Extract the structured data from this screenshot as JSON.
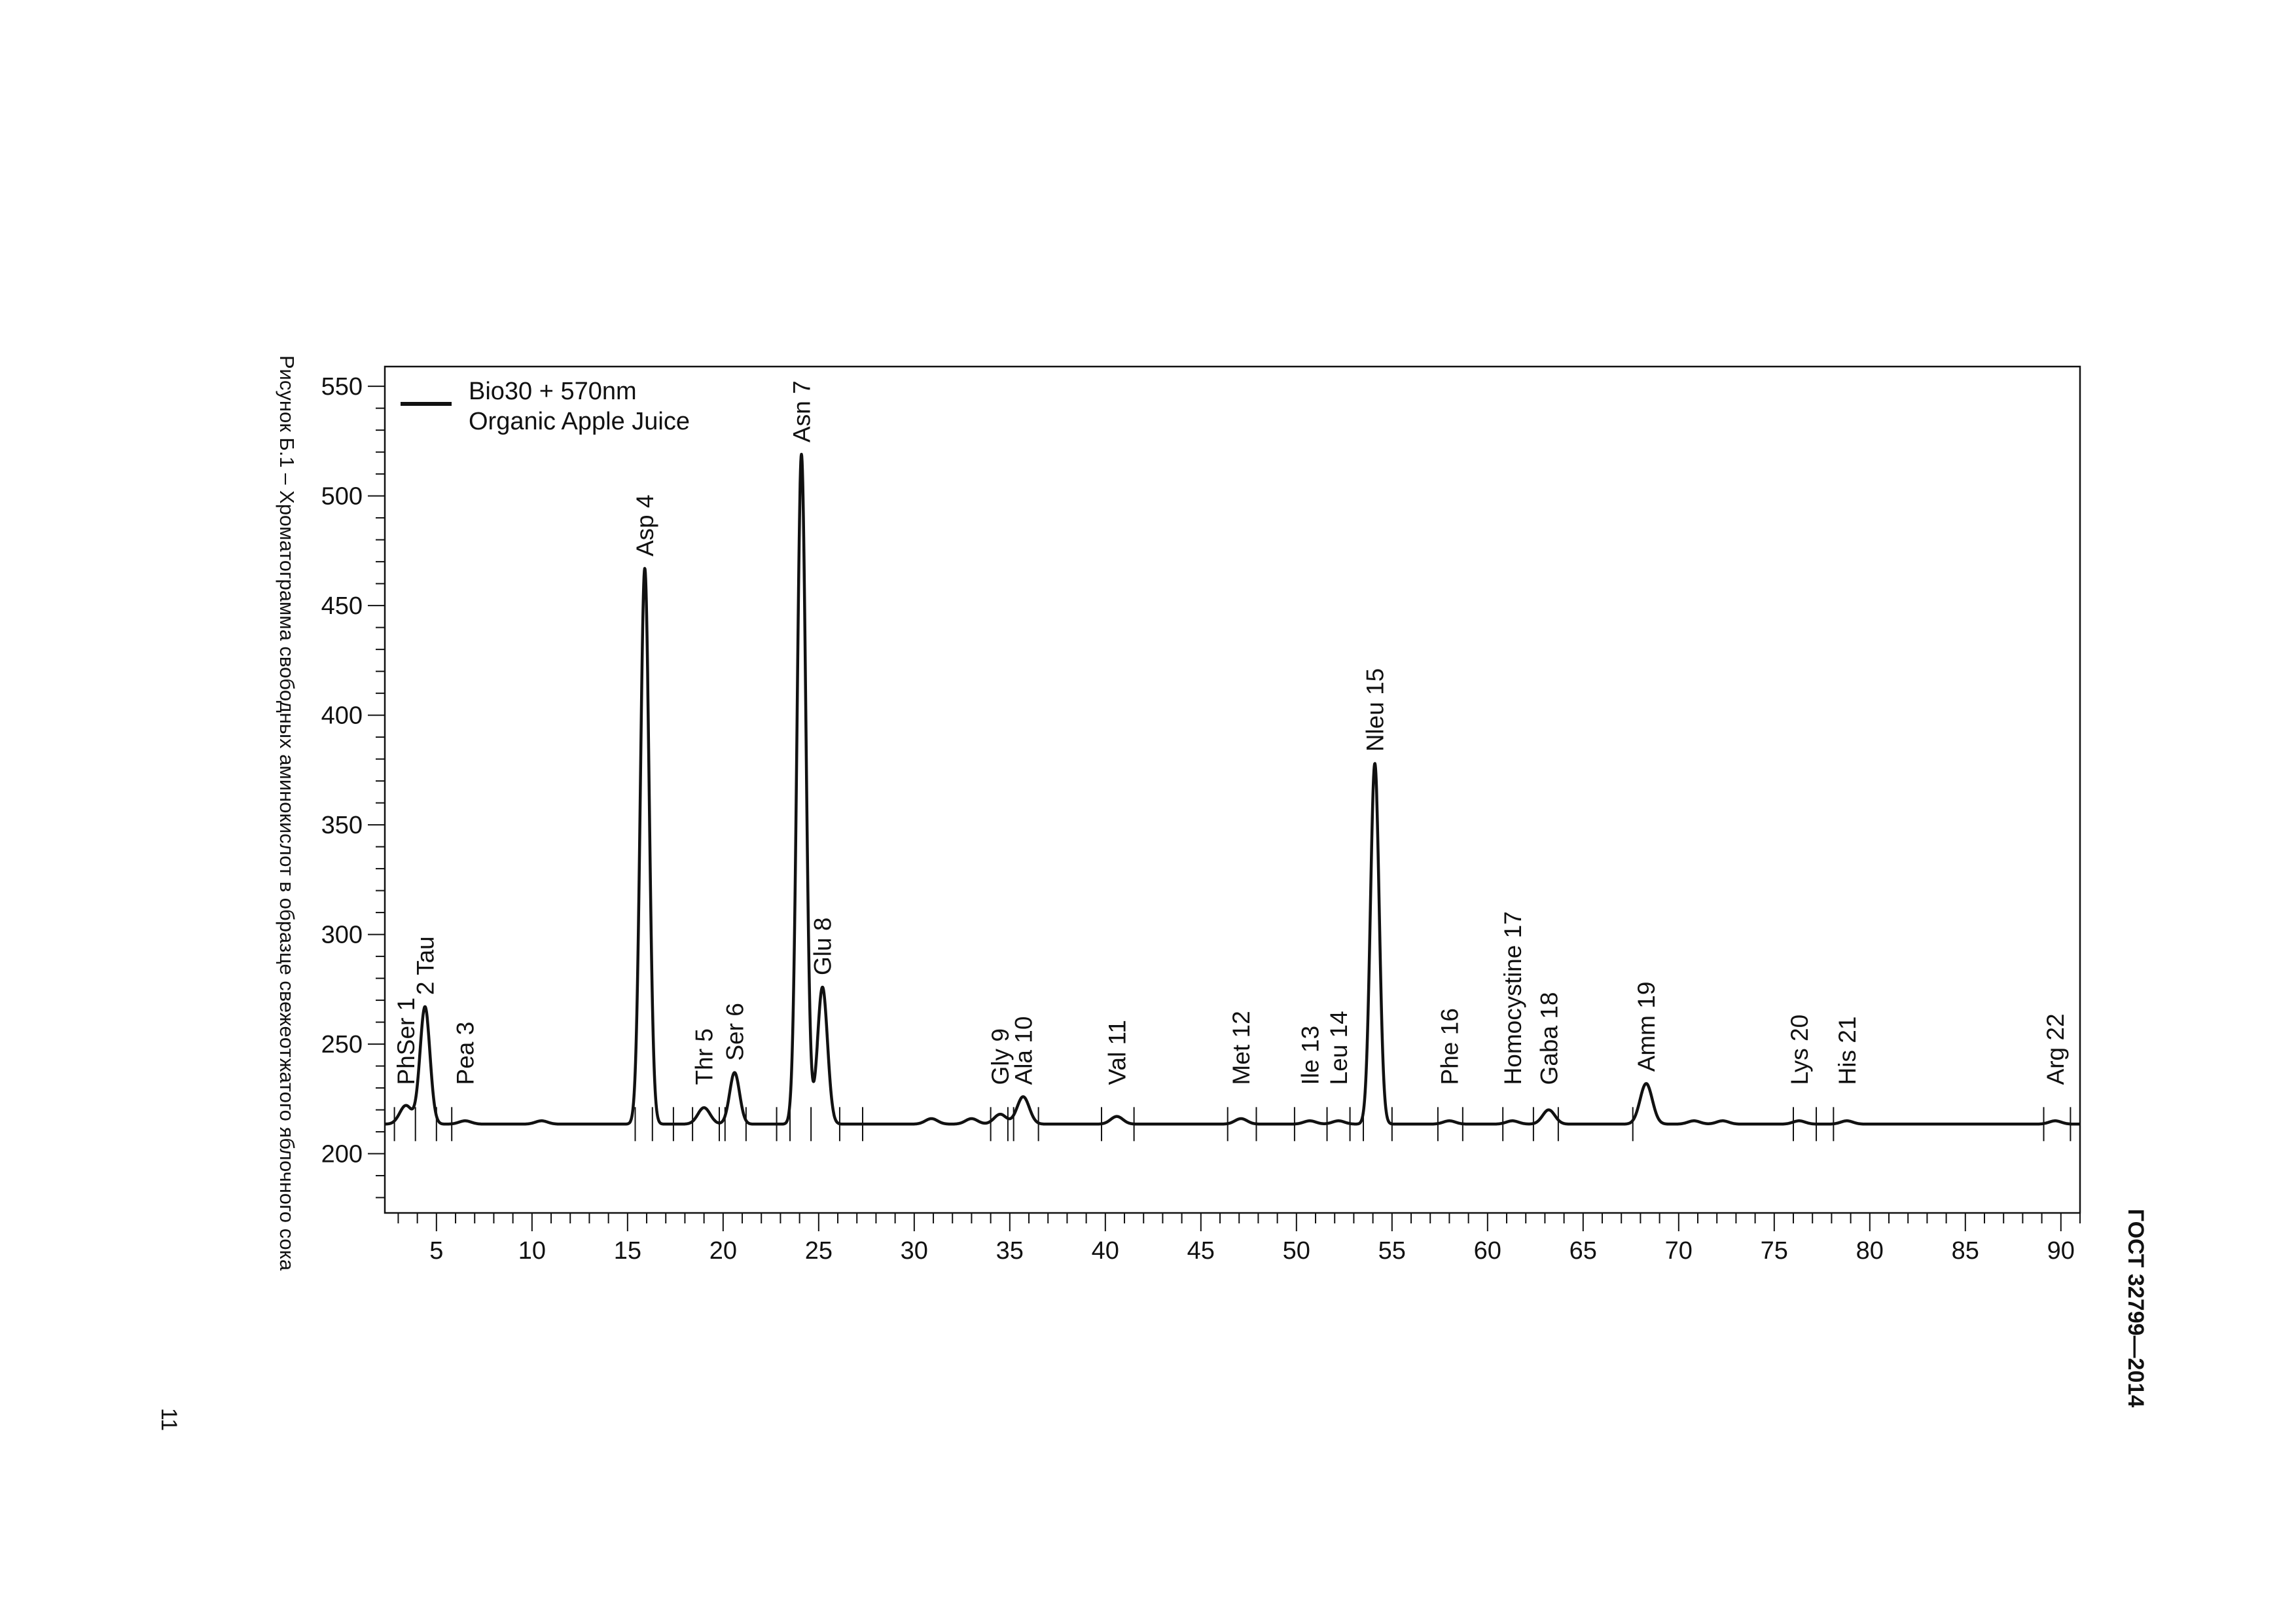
{
  "page": {
    "caption": "Рисунок Б.1 – Хроматограмма свободных аминокислот в образце свежеотжатого яблочного сока",
    "standard": "ГОСТ 32799—2014",
    "page_number": "11"
  },
  "chart_data": {
    "type": "line",
    "title": "",
    "xlabel": "",
    "ylabel": "",
    "xlim": [
      2.3,
      91
    ],
    "ylim": [
      173,
      559
    ],
    "x_ticks": [
      5,
      10,
      15,
      20,
      25,
      30,
      35,
      40,
      45,
      50,
      55,
      60,
      65,
      70,
      75,
      80,
      85,
      90
    ],
    "y_ticks": [
      200,
      250,
      300,
      350,
      400,
      450,
      500,
      550
    ],
    "legend": {
      "position": "top-left",
      "line1": "Bio30 + 570nm",
      "line2": "Organic Apple Juice"
    },
    "baseline": 213.5,
    "series": [
      {
        "name": "Bio30 + 570nm",
        "note": "Organic Apple Juice"
      }
    ],
    "peaks": [
      {
        "label": "PhSer 1",
        "x": 3.4,
        "y": 222
      },
      {
        "label": "2 Tau",
        "x": 4.4,
        "y": 267
      },
      {
        "label": "Pea 3",
        "x": 6.5,
        "y": 215
      },
      {
        "label": "Asp 4",
        "x": 15.9,
        "y": 467
      },
      {
        "label": "Thr 5",
        "x": 19.0,
        "y": 221
      },
      {
        "label": "Ser 6",
        "x": 20.6,
        "y": 237
      },
      {
        "label": "Asn 7",
        "x": 24.1,
        "y": 519
      },
      {
        "label": "Glu 8",
        "x": 25.2,
        "y": 276
      },
      {
        "label": "Gly 9",
        "x": 34.5,
        "y": 218
      },
      {
        "label": "Ala 10",
        "x": 35.7,
        "y": 226
      },
      {
        "label": "Val 11",
        "x": 40.6,
        "y": 217
      },
      {
        "label": "Met 12",
        "x": 47.1,
        "y": 216
      },
      {
        "label": "Ile 13",
        "x": 50.7,
        "y": 215
      },
      {
        "label": "Leu 14",
        "x": 52.2,
        "y": 215
      },
      {
        "label": "Nleu 15",
        "x": 54.1,
        "y": 378
      },
      {
        "label": "Phe 16",
        "x": 58.0,
        "y": 215
      },
      {
        "label": "Homocystine 17",
        "x": 61.3,
        "y": 215
      },
      {
        "label": "Gaba 18",
        "x": 63.2,
        "y": 220
      },
      {
        "label": "Amm 19",
        "x": 68.3,
        "y": 232
      },
      {
        "label": "Lys 20",
        "x": 76.3,
        "y": 215
      },
      {
        "label": "His 21",
        "x": 78.8,
        "y": 215
      },
      {
        "label": "Arg 22",
        "x": 89.7,
        "y": 215
      }
    ],
    "minor_bumps": [
      {
        "x": 10.5,
        "y": 215
      },
      {
        "x": 30.9,
        "y": 216
      },
      {
        "x": 33.0,
        "y": 216
      },
      {
        "x": 70.8,
        "y": 215
      },
      {
        "x": 72.3,
        "y": 215
      }
    ],
    "valley_markers": [
      2.8,
      3.9,
      5.0,
      5.8,
      15.4,
      16.3,
      17.4,
      18.4,
      19.8,
      20.1,
      21.2,
      22.8,
      23.5,
      24.6,
      26.1,
      27.3,
      34.0,
      34.9,
      35.2,
      36.5,
      39.8,
      41.5,
      46.4,
      47.9,
      49.9,
      51.6,
      52.8,
      53.5,
      55.0,
      57.4,
      58.7,
      60.8,
      62.4,
      63.7,
      67.6,
      76.0,
      77.2,
      78.1,
      89.1,
      90.5
    ]
  }
}
